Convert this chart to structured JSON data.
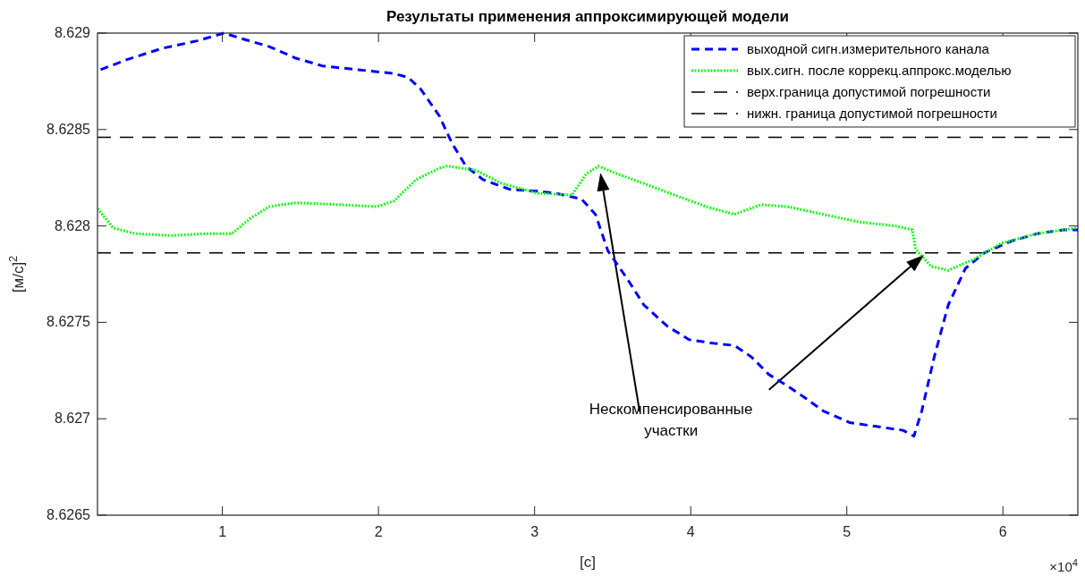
{
  "chart_data": {
    "type": "line",
    "title": "Результаты применения аппроксимирующей модели",
    "xlabel": "[с]",
    "ylabel": "[м/с]$^{2}$",
    "xlim": [
      0.2,
      6.48
    ],
    "ylim": [
      8.6265,
      8.629
    ],
    "xticks": [
      1,
      2,
      3,
      4,
      5,
      6
    ],
    "yticks": [
      8.6265,
      8.627,
      8.6275,
      8.628,
      8.6285,
      8.629
    ],
    "grid": false,
    "legend": "top right",
    "marker": "none",
    "series": [
      {
        "name": "выходной сигн.измерительного канала",
        "color": "#0000ff",
        "line_style": "dashed",
        "x": [
          0.22,
          0.38,
          0.61,
          0.84,
          1.01,
          1.13,
          1.3,
          1.47,
          1.64,
          1.87,
          2.1,
          2.19,
          2.27,
          2.39,
          2.47,
          2.56,
          2.67,
          2.84,
          3.02,
          3.13,
          3.3,
          3.39,
          3.47,
          3.59,
          3.7,
          3.85,
          3.99,
          4.16,
          4.28,
          4.39,
          4.5,
          4.62,
          4.73,
          4.85,
          5.02,
          5.19,
          5.36,
          5.43,
          5.48,
          5.56,
          5.65,
          5.76,
          5.88,
          6.05,
          6.22,
          6.39,
          6.48
        ],
        "values": [
          8.62881,
          8.62886,
          8.62892,
          8.62896,
          8.629,
          8.62897,
          8.62893,
          8.62887,
          8.62883,
          8.62881,
          8.62879,
          8.62877,
          8.62871,
          8.62857,
          8.62843,
          8.62831,
          8.62824,
          8.62819,
          8.62818,
          8.62817,
          8.62814,
          8.62806,
          8.62787,
          8.62773,
          8.62759,
          8.62748,
          8.62741,
          8.62739,
          8.62738,
          8.62732,
          8.62723,
          8.62717,
          8.62711,
          8.62704,
          8.62698,
          8.62696,
          8.62694,
          8.62691,
          8.62704,
          8.62732,
          8.62759,
          8.62778,
          8.62786,
          8.62792,
          8.62796,
          8.62798,
          8.62798
        ]
      },
      {
        "name": "вых.сигн. после коррекц.аппрокс.моделью",
        "color": "#00ff00",
        "line_style": "dotted",
        "x": [
          0.2,
          0.3,
          0.44,
          0.67,
          0.9,
          1.06,
          1.18,
          1.3,
          1.47,
          1.76,
          1.99,
          2.1,
          2.24,
          2.39,
          2.44,
          2.62,
          2.79,
          3.02,
          3.24,
          3.33,
          3.41,
          3.53,
          3.7,
          3.93,
          4.1,
          4.28,
          4.45,
          4.62,
          4.85,
          5.08,
          5.31,
          5.42,
          5.44,
          5.54,
          5.65,
          5.82,
          5.99,
          6.22,
          6.48
        ],
        "values": [
          8.62809,
          8.62799,
          8.62796,
          8.62795,
          8.62796,
          8.62796,
          8.62804,
          8.6281,
          8.62812,
          8.62811,
          8.6281,
          8.62813,
          8.62824,
          8.6283,
          8.62831,
          8.62829,
          8.62822,
          8.62817,
          8.62816,
          8.62827,
          8.62831,
          8.62827,
          8.62822,
          8.62815,
          8.6281,
          8.62806,
          8.62811,
          8.6281,
          8.62806,
          8.62802,
          8.628,
          8.62798,
          8.62788,
          8.62779,
          8.62777,
          8.62783,
          8.62791,
          8.62796,
          8.62799
        ]
      }
    ],
    "ref_lines": [
      {
        "axis": "y",
        "value": 8.62846,
        "label": "верх.граница допустимой погрешности",
        "color": "#000000",
        "line_style": "dashed"
      },
      {
        "axis": "y",
        "value": 8.62786,
        "label": "нижн. граница допустимой погрешности",
        "color": "#000000",
        "line_style": "dashed"
      }
    ],
    "annotations": [
      "Нескомпенсированные участки",
      "×10$^{4}$"
    ]
  }
}
